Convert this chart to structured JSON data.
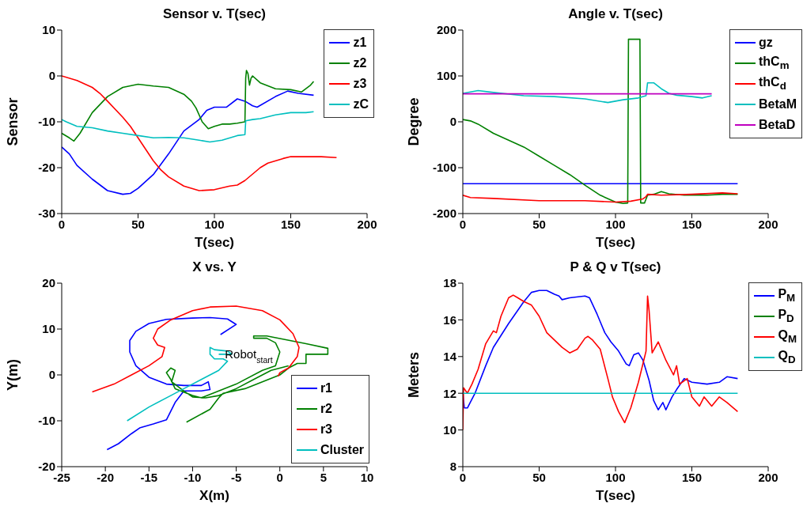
{
  "chart_data": [
    {
      "type": "line",
      "title": "Sensor v. T(sec)",
      "xlabel": "T(sec)",
      "ylabel": "Sensor",
      "xlim": [
        0,
        200
      ],
      "xticks": [
        0,
        50,
        100,
        150,
        200
      ],
      "ylim": [
        -30,
        10
      ],
      "yticks": [
        -30,
        -20,
        -10,
        0,
        10
      ],
      "legend": "top right",
      "series": [
        {
          "name": "z1",
          "color": "#0000ff",
          "x": [
            0,
            5,
            10,
            20,
            30,
            40,
            45,
            50,
            60,
            70,
            80,
            90,
            95,
            100,
            108,
            115,
            120,
            125,
            128,
            140,
            148,
            155,
            165
          ],
          "values": [
            -15.5,
            -17,
            -19.5,
            -22.5,
            -25,
            -25.8,
            -25.6,
            -24.5,
            -21.5,
            -17,
            -12,
            -9.5,
            -7.5,
            -6.8,
            -6.8,
            -5,
            -5.5,
            -6.5,
            -6.8,
            -4.5,
            -3.3,
            -3.8,
            -4.2
          ]
        },
        {
          "name": "z2",
          "color": "#008000",
          "x": [
            0,
            5,
            8,
            12,
            20,
            30,
            40,
            50,
            60,
            70,
            80,
            85,
            88,
            92,
            96,
            100,
            105,
            110,
            115,
            120,
            120.5,
            121,
            122,
            123,
            124,
            125,
            130,
            140,
            150,
            157,
            163,
            165
          ],
          "values": [
            -12.5,
            -13.5,
            -14.2,
            -12.5,
            -8,
            -4.5,
            -2.5,
            -1.8,
            -2.2,
            -2.5,
            -4,
            -5.5,
            -7,
            -10,
            -11.5,
            -11,
            -10.5,
            -10.5,
            -10.3,
            -10,
            -0.5,
            1.2,
            0.5,
            -2,
            -0.5,
            0,
            -1.5,
            -2.8,
            -3,
            -3.5,
            -2,
            -1.2
          ]
        },
        {
          "name": "z3",
          "color": "#ff0000",
          "x": [
            0,
            10,
            20,
            25,
            30,
            40,
            45,
            50,
            55,
            60,
            65,
            70,
            80,
            90,
            100,
            110,
            115,
            120,
            130,
            135,
            145,
            150,
            160,
            170,
            180
          ],
          "values": [
            0,
            -1,
            -2.5,
            -3.8,
            -5.5,
            -9,
            -11,
            -13.5,
            -16,
            -18.5,
            -20.5,
            -22,
            -24,
            -25,
            -24.8,
            -24,
            -23.8,
            -22.8,
            -20,
            -19,
            -18,
            -17.6,
            -17.6,
            -17.6,
            -17.8
          ]
        },
        {
          "name": "zC",
          "color": "#00bfbf",
          "x": [
            0,
            3,
            10,
            20,
            30,
            40,
            50,
            60,
            70,
            80,
            90,
            97,
            105,
            115,
            120,
            120.5,
            125,
            130,
            140,
            150,
            160,
            165
          ],
          "values": [
            -9.5,
            -10,
            -11,
            -11.3,
            -12,
            -12.5,
            -13,
            -13.5,
            -13.4,
            -13.5,
            -14,
            -14.4,
            -14,
            -13,
            -12.8,
            -9.8,
            -9.5,
            -9.3,
            -8.5,
            -8,
            -8,
            -7.8
          ]
        }
      ]
    },
    {
      "type": "line",
      "title": "Angle v. T(sec)",
      "xlabel": "T(sec)",
      "ylabel": "Degree",
      "xlim": [
        0,
        200
      ],
      "xticks": [
        0,
        50,
        100,
        150,
        200
      ],
      "ylim": [
        -200,
        200
      ],
      "yticks": [
        -200,
        -100,
        0,
        100,
        200
      ],
      "legend": "top right",
      "series": [
        {
          "name": "gz",
          "color": "#0000ff",
          "x": [
            0,
            180
          ],
          "values": [
            -135,
            -135
          ]
        },
        {
          "name": "thC$_{m}$",
          "color": "#008000",
          "x": [
            0,
            5,
            10,
            20,
            30,
            40,
            50,
            60,
            70,
            80,
            90,
            100,
            105,
            108,
            108.5,
            116,
            116.5,
            119,
            121,
            125,
            130,
            135,
            145,
            160,
            170,
            180
          ],
          "values": [
            5,
            2,
            -5,
            -25,
            -40,
            -55,
            -75,
            -95,
            -115,
            -138,
            -160,
            -175,
            -178,
            -177,
            180,
            180,
            -177,
            -177,
            -160,
            -158,
            -152,
            -157,
            -160,
            -160,
            -158,
            -158
          ]
        },
        {
          "name": "thC$_{d}$",
          "color": "#ff0000",
          "x": [
            0,
            5,
            20,
            50,
            80,
            100,
            110,
            118,
            120,
            121,
            130,
            150,
            170,
            180
          ],
          "values": [
            -160,
            -165,
            -167,
            -172,
            -172,
            -175,
            -173,
            -168,
            -163,
            -158,
            -160,
            -158,
            -155,
            -157
          ]
        },
        {
          "name": "BetaM",
          "color": "#00bfbf",
          "x": [
            0,
            10,
            20,
            40,
            60,
            80,
            95,
            105,
            115,
            120,
            121,
            125,
            130,
            135,
            140,
            150,
            157,
            163
          ],
          "values": [
            62,
            68,
            64,
            57,
            55,
            50,
            42,
            48,
            52,
            57,
            85,
            85,
            72,
            62,
            58,
            55,
            52,
            57
          ]
        },
        {
          "name": "BetaD",
          "color": "#bf00bf",
          "x": [
            0,
            163
          ],
          "values": [
            61,
            61
          ]
        }
      ]
    },
    {
      "type": "line",
      "title": "X vs. Y",
      "xlabel": "X(m)",
      "ylabel": "Y(m)",
      "xlim": [
        -25,
        10
      ],
      "xticks": [
        -25,
        -20,
        -15,
        -10,
        -5,
        0,
        5,
        10
      ],
      "ylim": [
        -20,
        20
      ],
      "yticks": [
        -20,
        -10,
        0,
        10,
        20
      ],
      "legend": "bottom right",
      "annotations": [
        {
          "text": "Robot$_{start}$",
          "x": -6.3,
          "y": 3.7
        }
      ],
      "series": [
        {
          "name": "r1",
          "color": "#0000ff",
          "x": [
            -6.8,
            -5,
            -6,
            -8,
            -10,
            -13,
            -15,
            -16.5,
            -17.2,
            -17.2,
            -16.5,
            -15,
            -13,
            -11,
            -9,
            -8.2,
            -8,
            -9,
            -11,
            -12,
            -13,
            -14.5,
            -16,
            -17,
            -18.5,
            -19.8
          ],
          "values": [
            8.8,
            11,
            12.2,
            12.5,
            12.4,
            12.1,
            11.2,
            9.5,
            7.5,
            5,
            2,
            -0.5,
            -2,
            -2.3,
            -2.3,
            -1.5,
            -3.2,
            -3.5,
            -3.5,
            -6,
            -9.8,
            -10.7,
            -11.5,
            -12.8,
            -15,
            -16.3
          ]
        },
        {
          "name": "r2",
          "color": "#008000",
          "x": [
            -10.7,
            -8,
            -7,
            -6.5,
            -4,
            -2,
            0,
            1,
            2,
            3,
            3,
            5.5,
            5.5,
            3,
            -1.5,
            -3,
            -3,
            -1.5,
            -0.5,
            0,
            -0.5,
            -2,
            -5,
            -7,
            -9,
            -10,
            -12,
            -12.5,
            -13,
            -12.5,
            -12,
            -12.4,
            -11,
            -10,
            -8.5,
            -7,
            -5,
            -3,
            -1,
            1
          ],
          "values": [
            -10.3,
            -7.5,
            -5,
            -4,
            -3,
            -1.5,
            0,
            1.5,
            2.5,
            2.5,
            4.5,
            4.5,
            5.8,
            6.8,
            8.5,
            8.5,
            8,
            8,
            7,
            5,
            2,
            1,
            -2,
            -3.5,
            -5,
            -4.5,
            -3,
            -1,
            0.5,
            1.5,
            1,
            -1.5,
            -3.5,
            -4.8,
            -5,
            -4.5,
            -3,
            -1,
            1,
            2
          ]
        },
        {
          "name": "r3",
          "color": "#ff0000",
          "x": [
            -21.5,
            -19,
            -17,
            -15,
            -13.5,
            -13.2,
            -14,
            -14.5,
            -14,
            -12.5,
            -10,
            -8,
            -5,
            -2,
            0,
            1.5,
            2.2,
            2,
            1,
            0,
            -0.2
          ],
          "values": [
            -3.7,
            -2,
            0,
            2,
            4,
            6,
            6.5,
            8,
            10,
            12,
            14,
            14.8,
            15,
            14,
            12,
            9,
            6,
            4,
            1.5,
            0.5,
            -0.3
          ]
        },
        {
          "name": "Cluster",
          "color": "#00bfbf",
          "x": [
            -17.5,
            -15,
            -12.5,
            -11,
            -9,
            -7,
            -6,
            -6.5,
            -7.5,
            -8,
            -8,
            -7.5,
            -6,
            -5.5,
            -7
          ],
          "values": [
            -10,
            -7,
            -4.5,
            -3,
            -1,
            1,
            3,
            3.5,
            3.5,
            4.5,
            6,
            5.5,
            5.2,
            4.5,
            4.5
          ]
        }
      ]
    },
    {
      "type": "line",
      "title": "P & Q v T(sec)",
      "xlabel": "T(sec)",
      "ylabel": "Meters",
      "xlim": [
        0,
        200
      ],
      "xticks": [
        0,
        50,
        100,
        150,
        200
      ],
      "ylim": [
        8,
        18
      ],
      "yticks": [
        8,
        10,
        12,
        14,
        16,
        18
      ],
      "legend": "top right",
      "series": [
        {
          "name": "P$_{M}$",
          "color": "#0000ff",
          "x": [
            0,
            1,
            3,
            8,
            15,
            20,
            30,
            40,
            45,
            50,
            55,
            60,
            63,
            65,
            70,
            80,
            83,
            88,
            93,
            97,
            102,
            107,
            109,
            112,
            115,
            118,
            122,
            125,
            128,
            131,
            133,
            137,
            140,
            145,
            150,
            160,
            168,
            173,
            180
          ],
          "values": [
            12,
            11.2,
            11.2,
            12,
            13.5,
            14.5,
            15.8,
            17,
            17.5,
            17.6,
            17.6,
            17.4,
            17.3,
            17.1,
            17.2,
            17.3,
            17.2,
            16.3,
            15.3,
            14.8,
            14.3,
            13.6,
            13.5,
            14.1,
            14.2,
            13.8,
            12.7,
            11.6,
            11.1,
            11.5,
            11.1,
            11.8,
            12.2,
            12.8,
            12.6,
            12.5,
            12.6,
            12.9,
            12.8
          ]
        },
        {
          "name": "P$_{D}$",
          "color": "#008000"
        },
        {
          "name": "Q$_{M}$",
          "color": "#ff0000",
          "x": [
            0,
            0.5,
            3,
            6,
            10,
            15,
            20,
            22,
            25,
            30,
            33,
            36,
            40,
            45,
            50,
            55,
            60,
            65,
            70,
            75,
            80,
            82,
            85,
            90,
            95,
            98,
            102,
            106,
            110,
            115,
            120,
            121,
            122,
            124,
            128,
            133,
            138,
            140,
            142,
            147,
            150,
            155,
            158,
            163,
            168,
            173,
            180
          ],
          "values": [
            10,
            12.3,
            12,
            12.5,
            13.3,
            14.7,
            15.4,
            15.3,
            16.2,
            17.2,
            17.35,
            17.2,
            17,
            16.8,
            16.2,
            15.3,
            14.9,
            14.5,
            14.2,
            14.4,
            15,
            15.1,
            14.9,
            14.4,
            12.8,
            11.8,
            11,
            10.4,
            11.2,
            12.6,
            14.3,
            17.3,
            16.5,
            14.2,
            14.8,
            13.8,
            13,
            13.5,
            12.5,
            12.8,
            11.8,
            11.3,
            11.8,
            11.3,
            11.8,
            11.5,
            11
          ]
        },
        {
          "name": "Q$_{D}$",
          "color": "#00bfbf",
          "x": [
            0,
            180
          ],
          "values": [
            12,
            12
          ]
        }
      ]
    }
  ]
}
